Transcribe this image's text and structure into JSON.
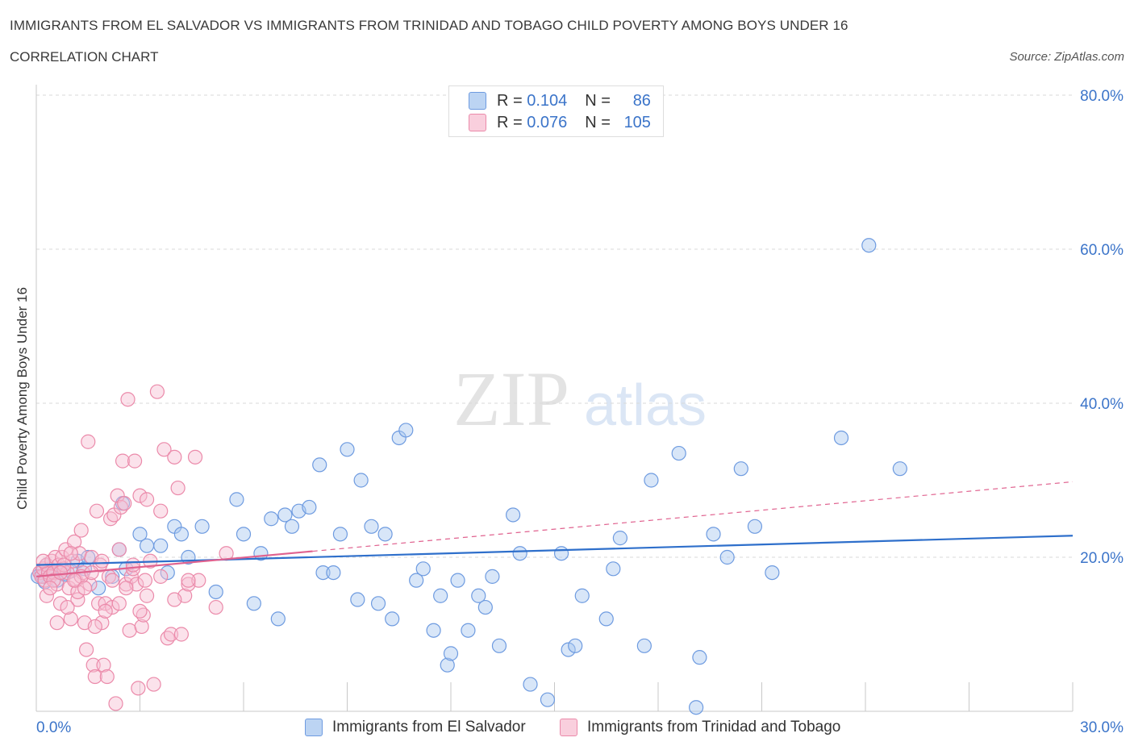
{
  "header": {
    "title": "IMMIGRANTS FROM EL SALVADOR VS IMMIGRANTS FROM TRINIDAD AND TOBAGO CHILD POVERTY AMONG BOYS UNDER 16",
    "subtitle": "CORRELATION CHART",
    "source": "Source: ZipAtlas.com"
  },
  "legend": {
    "r_label": "R =",
    "n_label": "N =",
    "series": [
      {
        "r": "0.104",
        "n": "86"
      },
      {
        "r": "0.076",
        "n": "105"
      }
    ]
  },
  "watermark": {
    "zip": "ZIP",
    "atlas": "atlas"
  },
  "colors": {
    "blue_fill": "#a9c7ef",
    "blue_stroke": "#6e9be0",
    "blue_line": "#2e6fcb",
    "pink_fill": "#f7bfd2",
    "pink_stroke": "#eb8aaa",
    "pink_line": "#e0628f",
    "axis_text": "#3b74c9",
    "grid": "#d9d9d9"
  },
  "chart_data": {
    "type": "scatter",
    "title": "IMMIGRANTS FROM EL SALVADOR VS IMMIGRANTS FROM TRINIDAD AND TOBAGO CHILD POVERTY AMONG BOYS UNDER 16",
    "subtitle": "CORRELATION CHART",
    "xlabel": "",
    "ylabel": "Child Poverty Among Boys Under 16",
    "xlim": [
      0,
      30
    ],
    "ylim": [
      0,
      80
    ],
    "x_tick_labels": [
      "0.0%",
      "30.0%"
    ],
    "y_ticks": [
      20,
      40,
      60,
      80
    ],
    "y_tick_labels": [
      "20.0%",
      "40.0%",
      "60.0%",
      "80.0%"
    ],
    "grid": true,
    "legend_position": "bottom",
    "series": [
      {
        "name": "Immigrants from El Salvador",
        "color": "#a9c7ef",
        "R": 0.104,
        "N": 86,
        "trend": {
          "x": [
            0,
            30
          ],
          "y": [
            19.0,
            22.8
          ],
          "style": "solid"
        },
        "points": [
          [
            0.2,
            17.5
          ],
          [
            0.3,
            19
          ],
          [
            0.5,
            18
          ],
          [
            0.6,
            17
          ],
          [
            1.2,
            19.5
          ],
          [
            1.4,
            18.5
          ],
          [
            1.5,
            20
          ],
          [
            1.8,
            16
          ],
          [
            2.2,
            17.5
          ],
          [
            2.4,
            21
          ],
          [
            2.5,
            27
          ],
          [
            2.6,
            18.5
          ],
          [
            3.0,
            23
          ],
          [
            3.2,
            21.5
          ],
          [
            3.6,
            21.5
          ],
          [
            3.8,
            18
          ],
          [
            4.0,
            24
          ],
          [
            4.2,
            23
          ],
          [
            4.4,
            20
          ],
          [
            4.8,
            24
          ],
          [
            5.2,
            15.5
          ],
          [
            5.8,
            27.5
          ],
          [
            6.0,
            23
          ],
          [
            6.3,
            14
          ],
          [
            6.5,
            20.5
          ],
          [
            6.8,
            25
          ],
          [
            7.0,
            12
          ],
          [
            7.2,
            25.5
          ],
          [
            7.4,
            24
          ],
          [
            7.6,
            26
          ],
          [
            7.9,
            26.5
          ],
          [
            8.2,
            32
          ],
          [
            8.3,
            18
          ],
          [
            8.6,
            18
          ],
          [
            8.8,
            23
          ],
          [
            9.0,
            34
          ],
          [
            9.3,
            14.5
          ],
          [
            9.4,
            30
          ],
          [
            9.7,
            24
          ],
          [
            9.9,
            14
          ],
          [
            10.1,
            23
          ],
          [
            10.3,
            12
          ],
          [
            10.5,
            35.5
          ],
          [
            10.7,
            36.5
          ],
          [
            11.0,
            17
          ],
          [
            11.2,
            18.5
          ],
          [
            11.5,
            10.5
          ],
          [
            11.7,
            15
          ],
          [
            11.9,
            6
          ],
          [
            12.0,
            7.5
          ],
          [
            12.2,
            17
          ],
          [
            12.5,
            10.5
          ],
          [
            12.8,
            15
          ],
          [
            13.0,
            13.5
          ],
          [
            13.2,
            17.5
          ],
          [
            13.4,
            8.5
          ],
          [
            13.8,
            25.5
          ],
          [
            14.0,
            20.5
          ],
          [
            14.3,
            3.5
          ],
          [
            14.8,
            1.5
          ],
          [
            15.2,
            20.5
          ],
          [
            15.4,
            8
          ],
          [
            15.6,
            8.5
          ],
          [
            15.8,
            15
          ],
          [
            16.5,
            12
          ],
          [
            16.7,
            18.5
          ],
          [
            16.9,
            22.5
          ],
          [
            17.6,
            8.5
          ],
          [
            17.8,
            30
          ],
          [
            18.6,
            33.5
          ],
          [
            19.1,
            0.5
          ],
          [
            19.2,
            7
          ],
          [
            19.6,
            23
          ],
          [
            20.0,
            20
          ],
          [
            20.4,
            31.5
          ],
          [
            20.8,
            24
          ],
          [
            21.3,
            18
          ],
          [
            23.3,
            35.5
          ],
          [
            24.1,
            60.5
          ],
          [
            25.0,
            31.5
          ],
          [
            0.15,
            18
          ],
          [
            0.4,
            18.5
          ],
          [
            0.8,
            17.8
          ],
          [
            1.0,
            18.2
          ],
          [
            0.05,
            17.5
          ],
          [
            0.25,
            16.8
          ]
        ]
      },
      {
        "name": "Immigrants from Trinidad and Tobago",
        "color": "#f7bfd2",
        "R": 0.076,
        "N": 105,
        "trend": {
          "x": [
            0,
            30
          ],
          "y": [
            17.5,
            29.8
          ],
          "style": "solid to dashed"
        },
        "points": [
          [
            0.1,
            18
          ],
          [
            0.15,
            17.5
          ],
          [
            0.2,
            18.5
          ],
          [
            0.25,
            17
          ],
          [
            0.3,
            19
          ],
          [
            0.35,
            18
          ],
          [
            0.4,
            17.5
          ],
          [
            0.45,
            19.5
          ],
          [
            0.5,
            18
          ],
          [
            0.55,
            20
          ],
          [
            0.6,
            16.5
          ],
          [
            0.65,
            19
          ],
          [
            0.7,
            14
          ],
          [
            0.75,
            20
          ],
          [
            0.8,
            18.5
          ],
          [
            0.85,
            21
          ],
          [
            0.9,
            18
          ],
          [
            0.95,
            16
          ],
          [
            1.0,
            12
          ],
          [
            1.05,
            19.5
          ],
          [
            1.1,
            22
          ],
          [
            1.15,
            17
          ],
          [
            1.2,
            14.5
          ],
          [
            1.25,
            20.5
          ],
          [
            1.3,
            23.5
          ],
          [
            1.35,
            18
          ],
          [
            1.4,
            11.5
          ],
          [
            1.45,
            8
          ],
          [
            1.5,
            35
          ],
          [
            1.55,
            16.5
          ],
          [
            1.6,
            20
          ],
          [
            1.65,
            6
          ],
          [
            1.7,
            4.5
          ],
          [
            1.75,
            26
          ],
          [
            1.8,
            14
          ],
          [
            1.85,
            19
          ],
          [
            1.9,
            11.5
          ],
          [
            1.95,
            6
          ],
          [
            2.0,
            14
          ],
          [
            2.05,
            4.5
          ],
          [
            2.1,
            17.5
          ],
          [
            2.15,
            25
          ],
          [
            2.2,
            13.5
          ],
          [
            2.25,
            25.5
          ],
          [
            2.3,
            1
          ],
          [
            2.35,
            28
          ],
          [
            2.4,
            21
          ],
          [
            2.45,
            26.5
          ],
          [
            2.5,
            32.5
          ],
          [
            2.55,
            27
          ],
          [
            2.6,
            16.5
          ],
          [
            2.65,
            40.5
          ],
          [
            2.7,
            10.5
          ],
          [
            2.75,
            17.5
          ],
          [
            2.8,
            18.5
          ],
          [
            2.85,
            32.5
          ],
          [
            2.9,
            16.5
          ],
          [
            2.95,
            3
          ],
          [
            3.0,
            28
          ],
          [
            3.05,
            11
          ],
          [
            3.1,
            12.5
          ],
          [
            3.15,
            17
          ],
          [
            3.2,
            27.5
          ],
          [
            3.3,
            19.5
          ],
          [
            3.4,
            3.5
          ],
          [
            3.5,
            41.5
          ],
          [
            3.6,
            26
          ],
          [
            3.7,
            34
          ],
          [
            3.8,
            9.5
          ],
          [
            3.9,
            10
          ],
          [
            4.0,
            33
          ],
          [
            4.1,
            29
          ],
          [
            4.2,
            10
          ],
          [
            4.3,
            15
          ],
          [
            4.4,
            16.5
          ],
          [
            4.6,
            33
          ],
          [
            4.7,
            17
          ],
          [
            5.2,
            13.5
          ],
          [
            5.5,
            20.5
          ],
          [
            0.3,
            15
          ],
          [
            0.6,
            11.5
          ],
          [
            0.9,
            13.5
          ],
          [
            1.2,
            15.5
          ],
          [
            0.2,
            19.5
          ],
          [
            0.5,
            17
          ],
          [
            0.8,
            19
          ],
          [
            1.0,
            20.5
          ],
          [
            1.3,
            17.5
          ],
          [
            1.6,
            18
          ],
          [
            1.9,
            19.5
          ],
          [
            2.2,
            17
          ],
          [
            2.4,
            14
          ],
          [
            2.6,
            16
          ],
          [
            2.8,
            19
          ],
          [
            3.2,
            15
          ],
          [
            3.6,
            17.5
          ],
          [
            4.0,
            14.5
          ],
          [
            4.4,
            17
          ],
          [
            0.4,
            16
          ],
          [
            0.7,
            18
          ],
          [
            1.1,
            17
          ],
          [
            1.4,
            16
          ],
          [
            1.7,
            11
          ],
          [
            2.0,
            13
          ],
          [
            3.0,
            13
          ]
        ]
      }
    ]
  }
}
